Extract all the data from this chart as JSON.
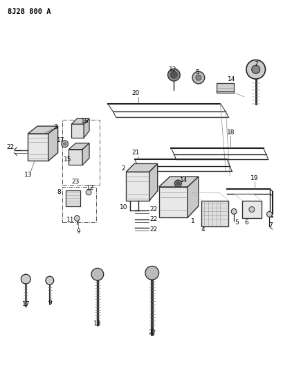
{
  "title": "8J28 800 A",
  "bg_color": "#ffffff",
  "fig_width": 4.09,
  "fig_height": 5.33,
  "dpi": 100,
  "label_fs": 6.5
}
